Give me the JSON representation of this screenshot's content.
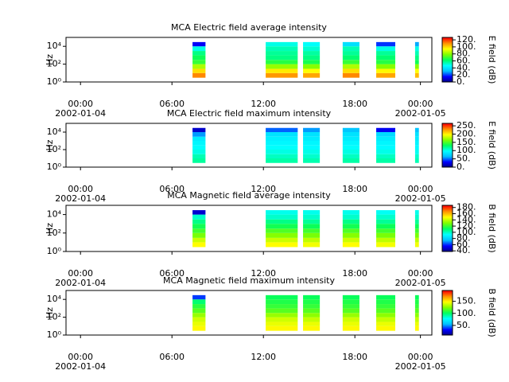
{
  "chart_data": [
    {
      "type": "spectrogram",
      "title": "MCA  Electric field average intensity",
      "ylabel": "Hz",
      "clabel": "E field (dB)",
      "xlim": [
        -0.95,
        23.05
      ],
      "xticks": [
        {
          "value": 0,
          "label": "00:00",
          "date": "2002-01-04"
        },
        {
          "value": 6,
          "label": "06:00"
        },
        {
          "value": 12,
          "label": "12:00"
        },
        {
          "value": 18,
          "label": "18:00"
        },
        {
          "value": 22.3,
          "label": "00:00",
          "date": "2002-01-05"
        }
      ],
      "ylim": [
        1,
        100000
      ],
      "log": true,
      "yticks": [
        {
          "value": 1,
          "label": "10⁰"
        },
        {
          "value": 100,
          "label": "10²"
        },
        {
          "value": 10000,
          "label": "10⁴"
        }
      ],
      "clim": [
        0,
        127
      ],
      "cticks": [
        {
          "value": 0,
          "label": "0."
        },
        {
          "value": 20,
          "label": "20."
        },
        {
          "value": 40,
          "label": "40."
        },
        {
          "value": 60,
          "label": "60."
        },
        {
          "value": 80,
          "label": "80."
        },
        {
          "value": 100,
          "label": "100."
        },
        {
          "value": 120,
          "label": "120."
        }
      ],
      "colormap": [
        "#00007f",
        "#0000ff",
        "#00bfff",
        "#00ffff",
        "#00ff60",
        "#80ff00",
        "#ffff00",
        "#ff9000",
        "#ff0000"
      ],
      "freq_edges": [
        3,
        10,
        30,
        100,
        300,
        1000,
        3000,
        10000,
        30000
      ],
      "segments": [
        {
          "start": 7.35,
          "end": 8.2,
          "values": [
            112,
            100,
            85,
            70,
            65,
            60,
            50,
            15
          ]
        },
        {
          "start": 12.15,
          "end": 14.25,
          "values": [
            110,
            98,
            82,
            68,
            60,
            58,
            55,
            50
          ]
        },
        {
          "start": 14.6,
          "end": 15.7,
          "values": [
            108,
            95,
            80,
            66,
            60,
            57,
            52,
            48
          ]
        },
        {
          "start": 17.2,
          "end": 18.3,
          "values": [
            112,
            100,
            85,
            70,
            62,
            58,
            55,
            40
          ]
        },
        {
          "start": 19.4,
          "end": 20.65,
          "values": [
            108,
            96,
            80,
            68,
            62,
            58,
            50,
            20
          ]
        },
        {
          "start": 21.95,
          "end": 22.2,
          "values": [
            105,
            95,
            80,
            65,
            60,
            55,
            50,
            30
          ]
        }
      ]
    },
    {
      "type": "spectrogram",
      "title": "MCA  Electric field maximum intensity",
      "ylabel": "Hz",
      "clabel": "E field (dB)",
      "xlim": [
        -0.95,
        23.05
      ],
      "xticks": [
        {
          "value": 0,
          "label": "00:00",
          "date": "2002-01-04"
        },
        {
          "value": 6,
          "label": "06:00"
        },
        {
          "value": 12,
          "label": "12:00"
        },
        {
          "value": 18,
          "label": "18:00"
        },
        {
          "value": 22.3,
          "label": "00:00",
          "date": "2002-01-05"
        }
      ],
      "ylim": [
        1,
        100000
      ],
      "log": true,
      "yticks": [
        {
          "value": 1,
          "label": "10⁰"
        },
        {
          "value": 100,
          "label": "10²"
        },
        {
          "value": 10000,
          "label": "10⁴"
        }
      ],
      "clim": [
        0,
        265
      ],
      "cticks": [
        {
          "value": 0,
          "label": "0."
        },
        {
          "value": 50,
          "label": "50."
        },
        {
          "value": 100,
          "label": "100."
        },
        {
          "value": 150,
          "label": "150."
        },
        {
          "value": 200,
          "label": "200."
        },
        {
          "value": 250,
          "label": "250."
        }
      ],
      "colormap": [
        "#00007f",
        "#0000ff",
        "#00bfff",
        "#00ffff",
        "#00ff60",
        "#80ff00",
        "#ffff00",
        "#ff9000",
        "#ff0000"
      ],
      "freq_edges": [
        3,
        10,
        30,
        100,
        300,
        1000,
        3000,
        10000,
        30000
      ],
      "segments": [
        {
          "start": 7.35,
          "end": 8.2,
          "values": [
            120,
            115,
            105,
            100,
            95,
            90,
            60,
            20
          ]
        },
        {
          "start": 12.15,
          "end": 14.25,
          "values": [
            118,
            112,
            105,
            100,
            96,
            92,
            85,
            50
          ]
        },
        {
          "start": 14.6,
          "end": 15.7,
          "values": [
            116,
            110,
            104,
            98,
            95,
            90,
            85,
            60
          ]
        },
        {
          "start": 17.2,
          "end": 18.3,
          "values": [
            118,
            112,
            105,
            100,
            95,
            90,
            85,
            70
          ]
        },
        {
          "start": 19.4,
          "end": 20.65,
          "values": [
            118,
            112,
            104,
            98,
            95,
            90,
            80,
            30
          ]
        },
        {
          "start": 21.95,
          "end": 22.2,
          "values": [
            115,
            110,
            102,
            98,
            94,
            90,
            85,
            70
          ]
        }
      ]
    },
    {
      "type": "spectrogram",
      "title": "MCA  Magnetic field average intensity",
      "ylabel": "Hz",
      "clabel": "B field (dB)",
      "xlim": [
        -0.95,
        23.05
      ],
      "xticks": [
        {
          "value": 0,
          "label": "00:00",
          "date": "2002-01-04"
        },
        {
          "value": 6,
          "label": "06:00"
        },
        {
          "value": 12,
          "label": "12:00"
        },
        {
          "value": 18,
          "label": "18:00"
        },
        {
          "value": 22.3,
          "label": "00:00",
          "date": "2002-01-05"
        }
      ],
      "ylim": [
        1,
        100000
      ],
      "log": true,
      "yticks": [
        {
          "value": 1,
          "label": "10⁰"
        },
        {
          "value": 100,
          "label": "10²"
        },
        {
          "value": 10000,
          "label": "10⁴"
        }
      ],
      "clim": [
        38,
        187
      ],
      "cticks": [
        {
          "value": 40,
          "label": "40."
        },
        {
          "value": 60,
          "label": "60."
        },
        {
          "value": 80,
          "label": "80."
        },
        {
          "value": 100,
          "label": "100."
        },
        {
          "value": 120,
          "label": "120."
        },
        {
          "value": 140,
          "label": "140."
        },
        {
          "value": 160,
          "label": "160."
        },
        {
          "value": 180,
          "label": "180."
        }
      ],
      "colormap": [
        "#00007f",
        "#0000ff",
        "#00bfff",
        "#00ffff",
        "#00ff60",
        "#80ff00",
        "#ffff00",
        "#ff9000",
        "#ff0000"
      ],
      "freq_edges": [
        3,
        10,
        30,
        100,
        300,
        1000,
        3000,
        10000,
        30000
      ],
      "segments": [
        {
          "start": 7.35,
          "end": 8.2,
          "values": [
            150,
            142,
            130,
            122,
            115,
            108,
            100,
            50
          ]
        },
        {
          "start": 12.15,
          "end": 14.25,
          "values": [
            150,
            142,
            132,
            124,
            115,
            108,
            100,
            96
          ]
        },
        {
          "start": 14.6,
          "end": 15.7,
          "values": [
            148,
            140,
            130,
            122,
            114,
            106,
            100,
            96
          ]
        },
        {
          "start": 17.2,
          "end": 18.3,
          "values": [
            150,
            142,
            132,
            124,
            115,
            108,
            100,
            96
          ]
        },
        {
          "start": 19.4,
          "end": 20.65,
          "values": [
            148,
            140,
            130,
            122,
            114,
            106,
            100,
            95
          ]
        },
        {
          "start": 21.95,
          "end": 22.2,
          "values": [
            148,
            140,
            130,
            122,
            114,
            106,
            100,
            96
          ]
        }
      ]
    },
    {
      "type": "spectrogram",
      "title": "MCA  Magnetic field maximum intensity",
      "ylabel": "Hz",
      "clabel": "B field (dB)",
      "xlim": [
        -0.95,
        23.05
      ],
      "xticks": [
        {
          "value": 0,
          "label": "00:00",
          "date": "2002-01-04"
        },
        {
          "value": 6,
          "label": "06:00"
        },
        {
          "value": 12,
          "label": "12:00"
        },
        {
          "value": 18,
          "label": "18:00"
        },
        {
          "value": 22.3,
          "label": "00:00",
          "date": "2002-01-05"
        }
      ],
      "ylim": [
        1,
        100000
      ],
      "log": true,
      "yticks": [
        {
          "value": 1,
          "label": "10⁰"
        },
        {
          "value": 100,
          "label": "10²"
        },
        {
          "value": 10000,
          "label": "10⁴"
        }
      ],
      "clim": [
        10,
        195
      ],
      "cticks": [
        {
          "value": 50,
          "label": "50."
        },
        {
          "value": 100,
          "label": "100."
        },
        {
          "value": 150,
          "label": "150."
        }
      ],
      "colormap": [
        "#00007f",
        "#0000ff",
        "#00bfff",
        "#00ffff",
        "#00ff60",
        "#80ff00",
        "#ffff00",
        "#ff9000",
        "#ff0000"
      ],
      "freq_edges": [
        3,
        10,
        30,
        100,
        300,
        1000,
        3000,
        10000,
        30000
      ],
      "segments": [
        {
          "start": 7.35,
          "end": 8.2,
          "values": [
            150,
            145,
            140,
            130,
            118,
            110,
            100,
            40
          ]
        },
        {
          "start": 12.15,
          "end": 14.25,
          "values": [
            150,
            145,
            140,
            130,
            118,
            112,
            108,
            104
          ]
        },
        {
          "start": 14.6,
          "end": 15.7,
          "values": [
            150,
            145,
            138,
            128,
            118,
            112,
            108,
            104
          ]
        },
        {
          "start": 17.2,
          "end": 18.3,
          "values": [
            150,
            145,
            140,
            130,
            118,
            112,
            108,
            104
          ]
        },
        {
          "start": 19.4,
          "end": 20.65,
          "values": [
            150,
            145,
            138,
            128,
            118,
            112,
            108,
            104
          ]
        },
        {
          "start": 21.95,
          "end": 22.2,
          "values": [
            150,
            145,
            138,
            128,
            118,
            112,
            108,
            104
          ]
        }
      ]
    }
  ]
}
